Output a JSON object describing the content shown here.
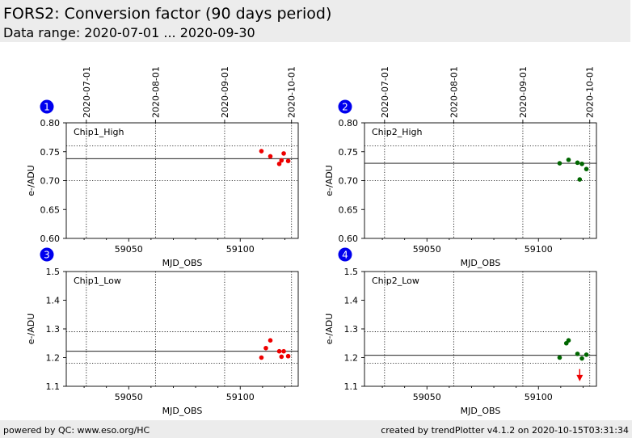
{
  "header": {
    "title": "FORS2: Conversion factor (90 days period)",
    "subtitle": "Data range: 2020-07-01 ... 2020-09-30"
  },
  "footer": {
    "left": "powered by QC: www.eso.org/HC",
    "right": "created by trendPlotter v4.1.2 on 2020-10-15T03:31:34"
  },
  "colors": {
    "red": "#ee0000",
    "green": "#006600",
    "badge": "#0000ee",
    "arrow": "#ee0000"
  },
  "chart_data": [
    {
      "type": "scatter",
      "badge": "1",
      "label": "Chip1_High",
      "xlabel": "MJD_OBS",
      "ylabel": "e-/ADU",
      "xlim": [
        59022,
        59126
      ],
      "ylim": [
        0.6,
        0.8
      ],
      "yticks": [
        0.6,
        0.65,
        0.7,
        0.75,
        0.8
      ],
      "yticklabels": [
        "0.60",
        "0.65",
        "0.70",
        "0.75",
        "0.80"
      ],
      "xticks": [
        59050,
        59100
      ],
      "xticklabels": [
        "59050",
        "59100"
      ],
      "date_lines": [
        59031,
        59062,
        59093,
        59123
      ],
      "date_labels": [
        "2020-07-01",
        "2020-08-01",
        "2020-09-01",
        "2020-10-01"
      ],
      "ref_line": 0.738,
      "band": [
        0.7,
        0.76
      ],
      "color_key": "red",
      "x": [
        59109.5,
        59113.5,
        59117.5,
        59118.5,
        59119.5,
        59121.5
      ],
      "y": [
        0.751,
        0.742,
        0.729,
        0.735,
        0.747,
        0.734
      ]
    },
    {
      "type": "scatter",
      "badge": "2",
      "label": "Chip2_High",
      "xlabel": "MJD_OBS",
      "ylabel": "e-/ADU",
      "xlim": [
        59022,
        59126
      ],
      "ylim": [
        0.6,
        0.8
      ],
      "yticks": [
        0.6,
        0.65,
        0.7,
        0.75,
        0.8
      ],
      "yticklabels": [
        "0.60",
        "0.65",
        "0.70",
        "0.75",
        "0.80"
      ],
      "xticks": [
        59050,
        59100
      ],
      "xticklabels": [
        "59050",
        "59100"
      ],
      "date_lines": [
        59031,
        59062,
        59093,
        59123
      ],
      "date_labels": [
        "2020-07-01",
        "2020-08-01",
        "2020-09-01",
        "2020-10-01"
      ],
      "ref_line": 0.73,
      "band": [
        0.7,
        0.76
      ],
      "color_key": "green",
      "x": [
        59109.5,
        59113.5,
        59117.5,
        59118.5,
        59119.5,
        59121.5
      ],
      "y": [
        0.73,
        0.736,
        0.731,
        0.702,
        0.729,
        0.72
      ]
    },
    {
      "type": "scatter",
      "badge": "3",
      "label": "Chip1_Low",
      "xlabel": "MJD_OBS",
      "ylabel": "e-/ADU",
      "xlim": [
        59022,
        59126
      ],
      "ylim": [
        1.1,
        1.5
      ],
      "yticks": [
        1.1,
        1.2,
        1.3,
        1.4,
        1.5
      ],
      "yticklabels": [
        "1.1",
        "1.2",
        "1.3",
        "1.4",
        "1.5"
      ],
      "xticks": [
        59050,
        59100
      ],
      "xticklabels": [
        "59050",
        "59100"
      ],
      "date_lines": [
        59031,
        59062,
        59093,
        59123
      ],
      "ref_line": 1.222,
      "band": [
        1.18,
        1.29
      ],
      "color_key": "red",
      "x": [
        59109.5,
        59111.5,
        59113.5,
        59117.5,
        59118.5,
        59119.5,
        59121.5
      ],
      "y": [
        1.2,
        1.233,
        1.26,
        1.222,
        1.203,
        1.222,
        1.205
      ]
    },
    {
      "type": "scatter",
      "badge": "4",
      "label": "Chip2_Low",
      "xlabel": "MJD_OBS",
      "ylabel": "e-/ADU",
      "xlim": [
        59022,
        59126
      ],
      "ylim": [
        1.1,
        1.5
      ],
      "yticks": [
        1.1,
        1.2,
        1.3,
        1.4,
        1.5
      ],
      "yticklabels": [
        "1.1",
        "1.2",
        "1.3",
        "1.4",
        "1.5"
      ],
      "xticks": [
        59050,
        59100
      ],
      "xticklabels": [
        "59050",
        "59100"
      ],
      "date_lines": [
        59031,
        59062,
        59093,
        59123
      ],
      "ref_line": 1.208,
      "band": [
        1.18,
        1.29
      ],
      "color_key": "green",
      "x": [
        59109.5,
        59112.5,
        59113.5,
        59117.5,
        59119.5,
        59121.5
      ],
      "y": [
        1.2,
        1.25,
        1.26,
        1.213,
        1.197,
        1.21
      ],
      "outlier_arrow": {
        "x": 59118.5,
        "y_from": 1.16,
        "y_to": 1.12
      }
    }
  ]
}
